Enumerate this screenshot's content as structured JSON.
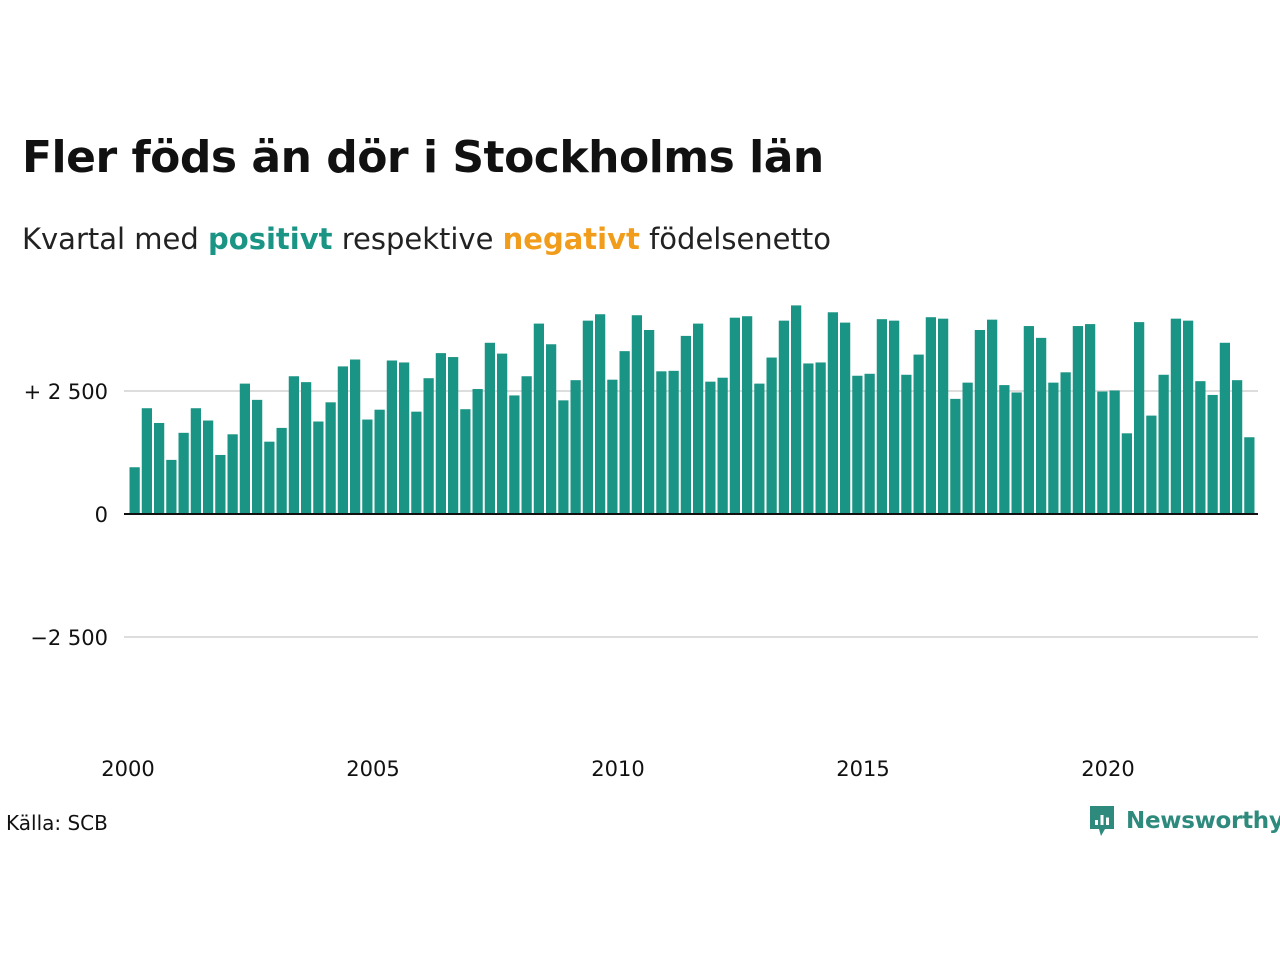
{
  "title": "Fler föds än dör i Stockholms län",
  "subtitle": {
    "prefix": "Kvartal med ",
    "positive_word": "positivt",
    "middle": " respektive ",
    "negative_word": "negativt",
    "suffix": " födelsenetto"
  },
  "colors": {
    "positive": "#1a9484",
    "negative": "#f19c1a",
    "gridline": "#dddddd",
    "axis": "#111111",
    "logo": "#2e8a7c"
  },
  "source": "Källa: SCB",
  "logo": {
    "brand": "Newsworthy",
    "icon": "newsworthy-logo-icon"
  },
  "chart_data": {
    "type": "bar",
    "x_start_year": 2000,
    "quarters_per_year": 4,
    "ylim": [
      -4500,
      4500
    ],
    "y_ticks": [
      {
        "value": 2500,
        "label": "+ 2 500"
      },
      {
        "value": 0,
        "label": "0"
      },
      {
        "value": -2500,
        "label": "−2 500"
      }
    ],
    "x_ticks": [
      {
        "year": 2000,
        "label": "2000"
      },
      {
        "year": 2005,
        "label": "2005"
      },
      {
        "year": 2010,
        "label": "2010"
      },
      {
        "year": 2015,
        "label": "2015"
      },
      {
        "year": 2020,
        "label": "2020"
      }
    ],
    "values": [
      950,
      2150,
      1850,
      1100,
      1650,
      2150,
      1900,
      1200,
      1620,
      2650,
      2320,
      1470,
      1750,
      2800,
      2680,
      1880,
      2270,
      3000,
      3140,
      1920,
      2120,
      3120,
      3080,
      2080,
      2760,
      3270,
      3190,
      2130,
      2540,
      3480,
      3260,
      2410,
      2800,
      3870,
      3450,
      2310,
      2720,
      3930,
      4060,
      2730,
      3310,
      4040,
      3740,
      2900,
      2910,
      3620,
      3870,
      2690,
      2770,
      3990,
      4020,
      2650,
      3180,
      3930,
      4240,
      3060,
      3080,
      4100,
      3890,
      2810,
      2850,
      3960,
      3930,
      2830,
      3240,
      4000,
      3970,
      2340,
      2670,
      3740,
      3950,
      2620,
      2470,
      3820,
      3580,
      2670,
      2880,
      3820,
      3860,
      2490,
      2510,
      1640,
      3900,
      2000,
      2830,
      3970,
      3930,
      2700,
      2420,
      3480,
      2720,
      1560
    ]
  }
}
